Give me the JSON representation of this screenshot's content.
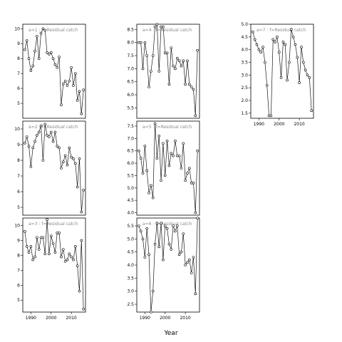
{
  "xlabel": "Year",
  "colors": {
    "line": "#1a1a1a",
    "point_stroke": "#000000",
    "panel_border": "#000000",
    "label_text": "#8a8a8a"
  },
  "chart_data": [
    {
      "type": "line",
      "panel_label": "a=1 : f=Residual catch",
      "x": [
        1987,
        1988,
        1989,
        1990,
        1991,
        1992,
        1993,
        1994,
        1995,
        1996,
        1997,
        1998,
        1999,
        2000,
        2001,
        2002,
        2003,
        2004,
        2005,
        2006,
        2007,
        2008,
        2009,
        2010,
        2011,
        2012,
        2013,
        2014,
        2015,
        2016
      ],
      "series": [
        {
          "values": [
            8.6,
            9.2,
            8.0,
            7.2,
            7.5,
            8.5,
            9.5,
            8.0,
            9.7,
            10.0,
            9.9,
            8.4,
            8.3,
            8.4,
            8.0,
            7.6,
            7.4,
            8.1,
            4.9,
            6.3,
            6.5,
            6.2,
            6.5,
            7.4,
            6.2,
            7.0,
            5.2,
            5.8,
            4.3,
            5.9
          ]
        }
      ],
      "ylim": [
        4.0,
        10.3
      ],
      "yticks": [
        5,
        6,
        7,
        8,
        9,
        10
      ],
      "xticks": [
        1990,
        2000,
        2010
      ]
    },
    {
      "type": "line",
      "panel_label": "a=2 : f=Residual catch",
      "x": [
        1987,
        1988,
        1989,
        1990,
        1991,
        1992,
        1993,
        1994,
        1995,
        1996,
        1997,
        1998,
        1999,
        2000,
        2001,
        2002,
        2003,
        2004,
        2005,
        2006,
        2007,
        2008,
        2009,
        2010,
        2011,
        2012,
        2013,
        2014,
        2015,
        2016
      ],
      "series": [
        {
          "values": [
            9.1,
            9.5,
            8.9,
            7.6,
            8.8,
            9.2,
            9.6,
            9.8,
            10.2,
            8.0,
            10.3,
            9.6,
            9.5,
            9.8,
            9.2,
            9.8,
            8.9,
            8.8,
            7.5,
            7.9,
            8.3,
            7.7,
            8.8,
            8.2,
            8.1,
            7.8,
            6.3,
            8.1,
            4.7,
            6.1
          ]
        }
      ],
      "ylim": [
        4.5,
        10.5
      ],
      "yticks": [
        5,
        6,
        7,
        8,
        9,
        10
      ],
      "xticks": [
        1990,
        2000,
        2010
      ]
    },
    {
      "type": "line",
      "panel_label": "a=3 : f=Residual catch",
      "x": [
        1987,
        1988,
        1989,
        1990,
        1991,
        1992,
        1993,
        1994,
        1995,
        1996,
        1997,
        1998,
        1999,
        2000,
        2001,
        2002,
        2003,
        2004,
        2005,
        2006,
        2007,
        2008,
        2009,
        2010,
        2011,
        2012,
        2013,
        2014,
        2015,
        2016
      ],
      "series": [
        {
          "values": [
            9.6,
            8.6,
            8.2,
            8.6,
            7.7,
            7.9,
            9.2,
            8.4,
            9.2,
            9.2,
            8.1,
            10.4,
            8.1,
            9.3,
            8.8,
            8.2,
            9.5,
            9.5,
            7.9,
            8.4,
            7.6,
            7.7,
            8.1,
            7.9,
            7.7,
            8.6,
            7.3,
            5.6,
            9.0,
            4.4
          ]
        }
      ],
      "ylim": [
        4.2,
        10.5
      ],
      "yticks": [
        5,
        6,
        7,
        8,
        9,
        10
      ],
      "xticks": [
        1990,
        2000,
        2010
      ]
    },
    {
      "type": "line",
      "panel_label": "a=4 : f=Residual catch",
      "x": [
        1987,
        1988,
        1989,
        1990,
        1991,
        1992,
        1993,
        1994,
        1995,
        1996,
        1997,
        1998,
        1999,
        2000,
        2001,
        2002,
        2003,
        2004,
        2005,
        2006,
        2007,
        2008,
        2009,
        2010,
        2011,
        2012,
        2013,
        2014,
        2015,
        2016
      ],
      "series": [
        {
          "values": [
            8.0,
            8.0,
            7.0,
            8.0,
            7.5,
            6.3,
            6.9,
            7.5,
            8.6,
            8.7,
            6.9,
            8.6,
            8.6,
            7.6,
            7.6,
            6.4,
            7.8,
            7.1,
            7.0,
            7.4,
            7.3,
            7.1,
            7.3,
            6.4,
            7.3,
            6.4,
            6.3,
            6.2,
            5.2,
            7.7
          ]
        }
      ],
      "ylim": [
        5.1,
        8.7
      ],
      "yticks": [
        5.5,
        6.0,
        6.5,
        7.0,
        7.5,
        8.0,
        8.5
      ],
      "xticks": [
        1990,
        2000,
        2010
      ]
    },
    {
      "type": "line",
      "panel_label": "a=5 : f=Residual catch",
      "x": [
        1987,
        1988,
        1989,
        1990,
        1991,
        1992,
        1993,
        1994,
        1995,
        1996,
        1997,
        1998,
        1999,
        2000,
        2001,
        2002,
        2003,
        2004,
        2005,
        2006,
        2007,
        2008,
        2009,
        2010,
        2011,
        2012,
        2013,
        2014,
        2015,
        2016
      ],
      "series": [
        {
          "values": [
            6.5,
            6.2,
            5.6,
            6.7,
            5.7,
            4.8,
            5.1,
            4.6,
            7.6,
            6.2,
            7.1,
            5.3,
            6.8,
            5.5,
            6.9,
            5.9,
            6.4,
            6.3,
            6.9,
            6.3,
            6.3,
            5.8,
            6.8,
            5.3,
            5.6,
            5.8,
            5.2,
            5.2,
            4.0,
            6.5
          ]
        }
      ],
      "ylim": [
        3.9,
        7.7
      ],
      "yticks": [
        4.0,
        4.5,
        5.0,
        5.5,
        6.0,
        6.5,
        7.0,
        7.5
      ],
      "xticks": [
        1990,
        2000,
        2010
      ]
    },
    {
      "type": "line",
      "panel_label": "a=6 : f=Residual catch",
      "x": [
        1987,
        1988,
        1989,
        1990,
        1991,
        1992,
        1993,
        1994,
        1995,
        1996,
        1997,
        1998,
        1999,
        2000,
        2001,
        2002,
        2003,
        2004,
        2005,
        2006,
        2007,
        2008,
        2009,
        2010,
        2011,
        2012,
        2013,
        2014,
        2015,
        2016
      ],
      "series": [
        {
          "values": [
            5.5,
            5.3,
            5.0,
            4.3,
            5.4,
            4.4,
            2.2,
            3.0,
            4.8,
            5.6,
            4.7,
            5.6,
            4.2,
            5.5,
            5.4,
            4.8,
            4.6,
            5.5,
            5.3,
            5.5,
            4.4,
            4.5,
            5.2,
            4.0,
            4.1,
            4.2,
            3.7,
            4.3,
            2.9,
            5.8
          ]
        }
      ],
      "ylim": [
        2.2,
        5.8
      ],
      "yticks": [
        2.5,
        3.0,
        3.5,
        4.0,
        4.5,
        5.0,
        5.5
      ],
      "xticks": [
        1990,
        2000,
        2010
      ]
    },
    {
      "type": "line",
      "panel_label": "a=7 : f=Residual catch",
      "x": [
        1987,
        1988,
        1989,
        1990,
        1991,
        1992,
        1993,
        1994,
        1995,
        1996,
        1997,
        1998,
        1999,
        2000,
        2001,
        2002,
        2003,
        2004,
        2005,
        2006,
        2007,
        2008,
        2009,
        2010,
        2011,
        2012,
        2013,
        2014,
        2015,
        2016
      ],
      "series": [
        {
          "values": [
            4.7,
            4.4,
            4.2,
            4.0,
            3.9,
            4.1,
            3.5,
            2.6,
            1.4,
            1.4,
            4.4,
            4.3,
            4.5,
            3.9,
            2.9,
            4.3,
            4.2,
            2.8,
            3.5,
            4.8,
            4.5,
            4.2,
            3.7,
            2.7,
            4.1,
            3.5,
            3.2,
            3.0,
            2.9,
            1.6
          ]
        }
      ],
      "ylim": [
        1.3,
        5.0
      ],
      "yticks": [
        1.5,
        2.0,
        2.5,
        3.0,
        3.5,
        4.0,
        4.5,
        5.0
      ],
      "xticks": [
        1990,
        2000,
        2010
      ]
    }
  ]
}
